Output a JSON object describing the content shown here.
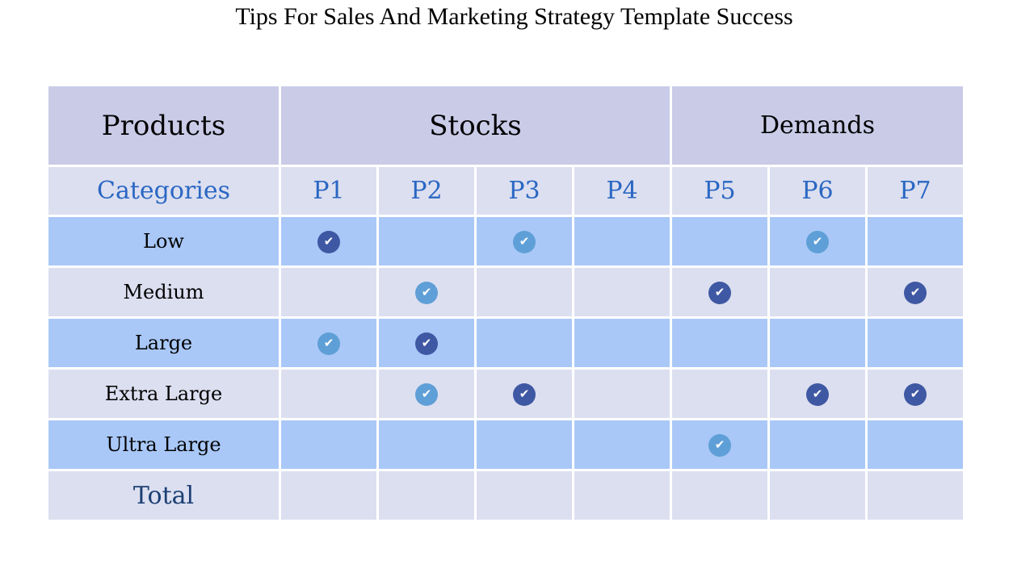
{
  "title": "Tips For Sales And Marketing Strategy Template Success",
  "header": {
    "products": "Products",
    "stocks": "Stocks",
    "demands": "Demands"
  },
  "subheader": {
    "categories": "Categories",
    "columns": [
      "P1",
      "P2",
      "P3",
      "P4",
      "P5",
      "P6",
      "P7"
    ]
  },
  "rows": [
    {
      "label": "Low",
      "checks": [
        "dark",
        "",
        "light",
        "",
        "",
        "light",
        ""
      ]
    },
    {
      "label": "Medium",
      "checks": [
        "",
        "light",
        "",
        "",
        "dark",
        "",
        "dark"
      ]
    },
    {
      "label": "Large",
      "checks": [
        "light",
        "dark",
        "",
        "",
        "",
        "",
        ""
      ]
    },
    {
      "label": "Extra Large",
      "checks": [
        "",
        "light",
        "dark",
        "",
        "",
        "dark",
        "dark"
      ]
    },
    {
      "label": "Ultra Large",
      "checks": [
        "",
        "",
        "",
        "",
        "light",
        "",
        ""
      ]
    }
  ],
  "total_label": "Total",
  "check_icon": "check-circle-icon",
  "colors": {
    "header_bg": "#c9cbe7",
    "row_blue": "#a9c8f7",
    "row_gray": "#dcdff0",
    "check_dark": "#3f58a3",
    "check_light": "#5f9fd7",
    "subheader_text": "#2a67c3",
    "total_text": "#1c3f73"
  }
}
